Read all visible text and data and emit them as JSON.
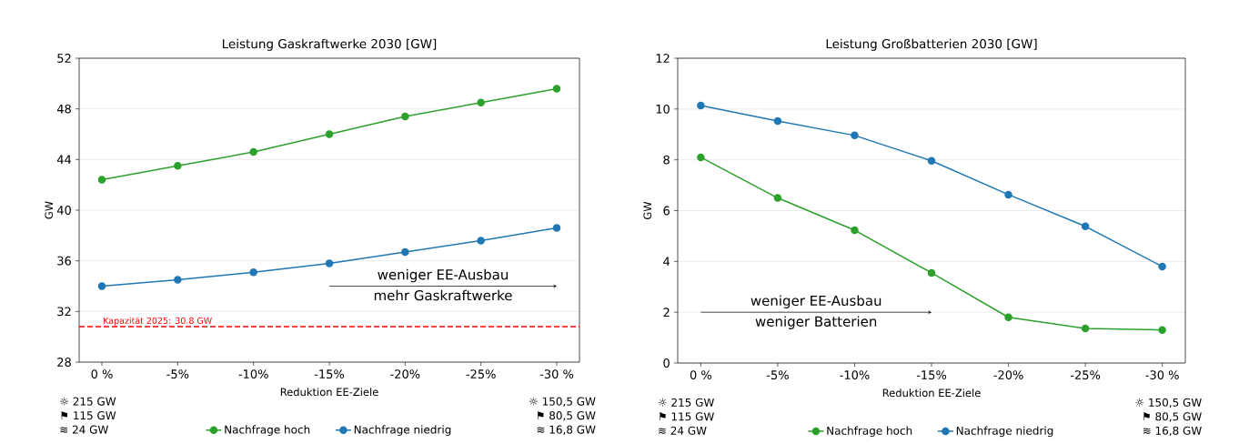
{
  "chart_data": [
    {
      "type": "line",
      "title": "Leistung Gaskraftwerke 2030 [GW]",
      "xlabel": "Reduktion EE-Ziele",
      "ylabel": "GW",
      "categories": [
        "0 %",
        "-5%",
        "-10%",
        "-15%",
        "-20%",
        "-25%",
        "-30 %"
      ],
      "series": [
        {
          "name": "Nachfrage hoch",
          "color": "#2ca02c",
          "values": [
            42.4,
            43.5,
            44.6,
            46.0,
            47.4,
            48.5,
            49.6
          ]
        },
        {
          "name": "Nachfrage niedrig",
          "color": "#1f77b4",
          "values": [
            34.0,
            34.5,
            35.1,
            35.8,
            36.7,
            37.6,
            38.6
          ]
        }
      ],
      "ylim": [
        28,
        52
      ],
      "yticks": [
        28,
        32,
        36,
        40,
        44,
        48,
        52
      ],
      "grid": "y",
      "legend": "bottom",
      "marker": "circle",
      "line_style": "solid",
      "ref_lines": [
        {
          "axis": "y",
          "value": 30.8,
          "label": "Kapazität 2025: 30.8 GW",
          "color": "#ff0000",
          "line_style": "dashed"
        }
      ],
      "annotations": [
        "weniger EE-Ausbau",
        "mehr Gaskraftwerke",
        "☼ 215 GW",
        "⚑ 115 GW",
        "≋ 24 GW",
        "☼ 150,5 GW",
        "⚑ 80,5 GW",
        "≋ 16,8 GW"
      ]
    },
    {
      "type": "line",
      "title": "Leistung Großbatterien 2030 [GW]",
      "xlabel": "Reduktion EE-Ziele",
      "ylabel": "GW",
      "categories": [
        "0 %",
        "-5%",
        "-10%",
        "-15%",
        "-20%",
        "-25%",
        "-30 %"
      ],
      "series": [
        {
          "name": "Nachfrage hoch",
          "color": "#2ca02c",
          "values": [
            8.1,
            6.5,
            5.23,
            3.55,
            1.8,
            1.36,
            1.3
          ]
        },
        {
          "name": "Nachfrage niedrig",
          "color": "#1f77b4",
          "values": [
            10.14,
            9.53,
            8.96,
            7.96,
            6.63,
            5.38,
            3.8
          ]
        }
      ],
      "ylim": [
        0,
        12
      ],
      "yticks": [
        0,
        2,
        4,
        6,
        8,
        10,
        12
      ],
      "grid": "y",
      "legend": "bottom",
      "marker": "circle",
      "line_style": "solid",
      "annotations": [
        "weniger EE-Ausbau",
        "weniger Batterien",
        "☼ 215 GW",
        "⚑ 115 GW",
        "≋ 24 GW",
        "☼ 150,5 GW",
        "⚑ 80,5 GW",
        "≋ 16,8 GW"
      ]
    }
  ]
}
